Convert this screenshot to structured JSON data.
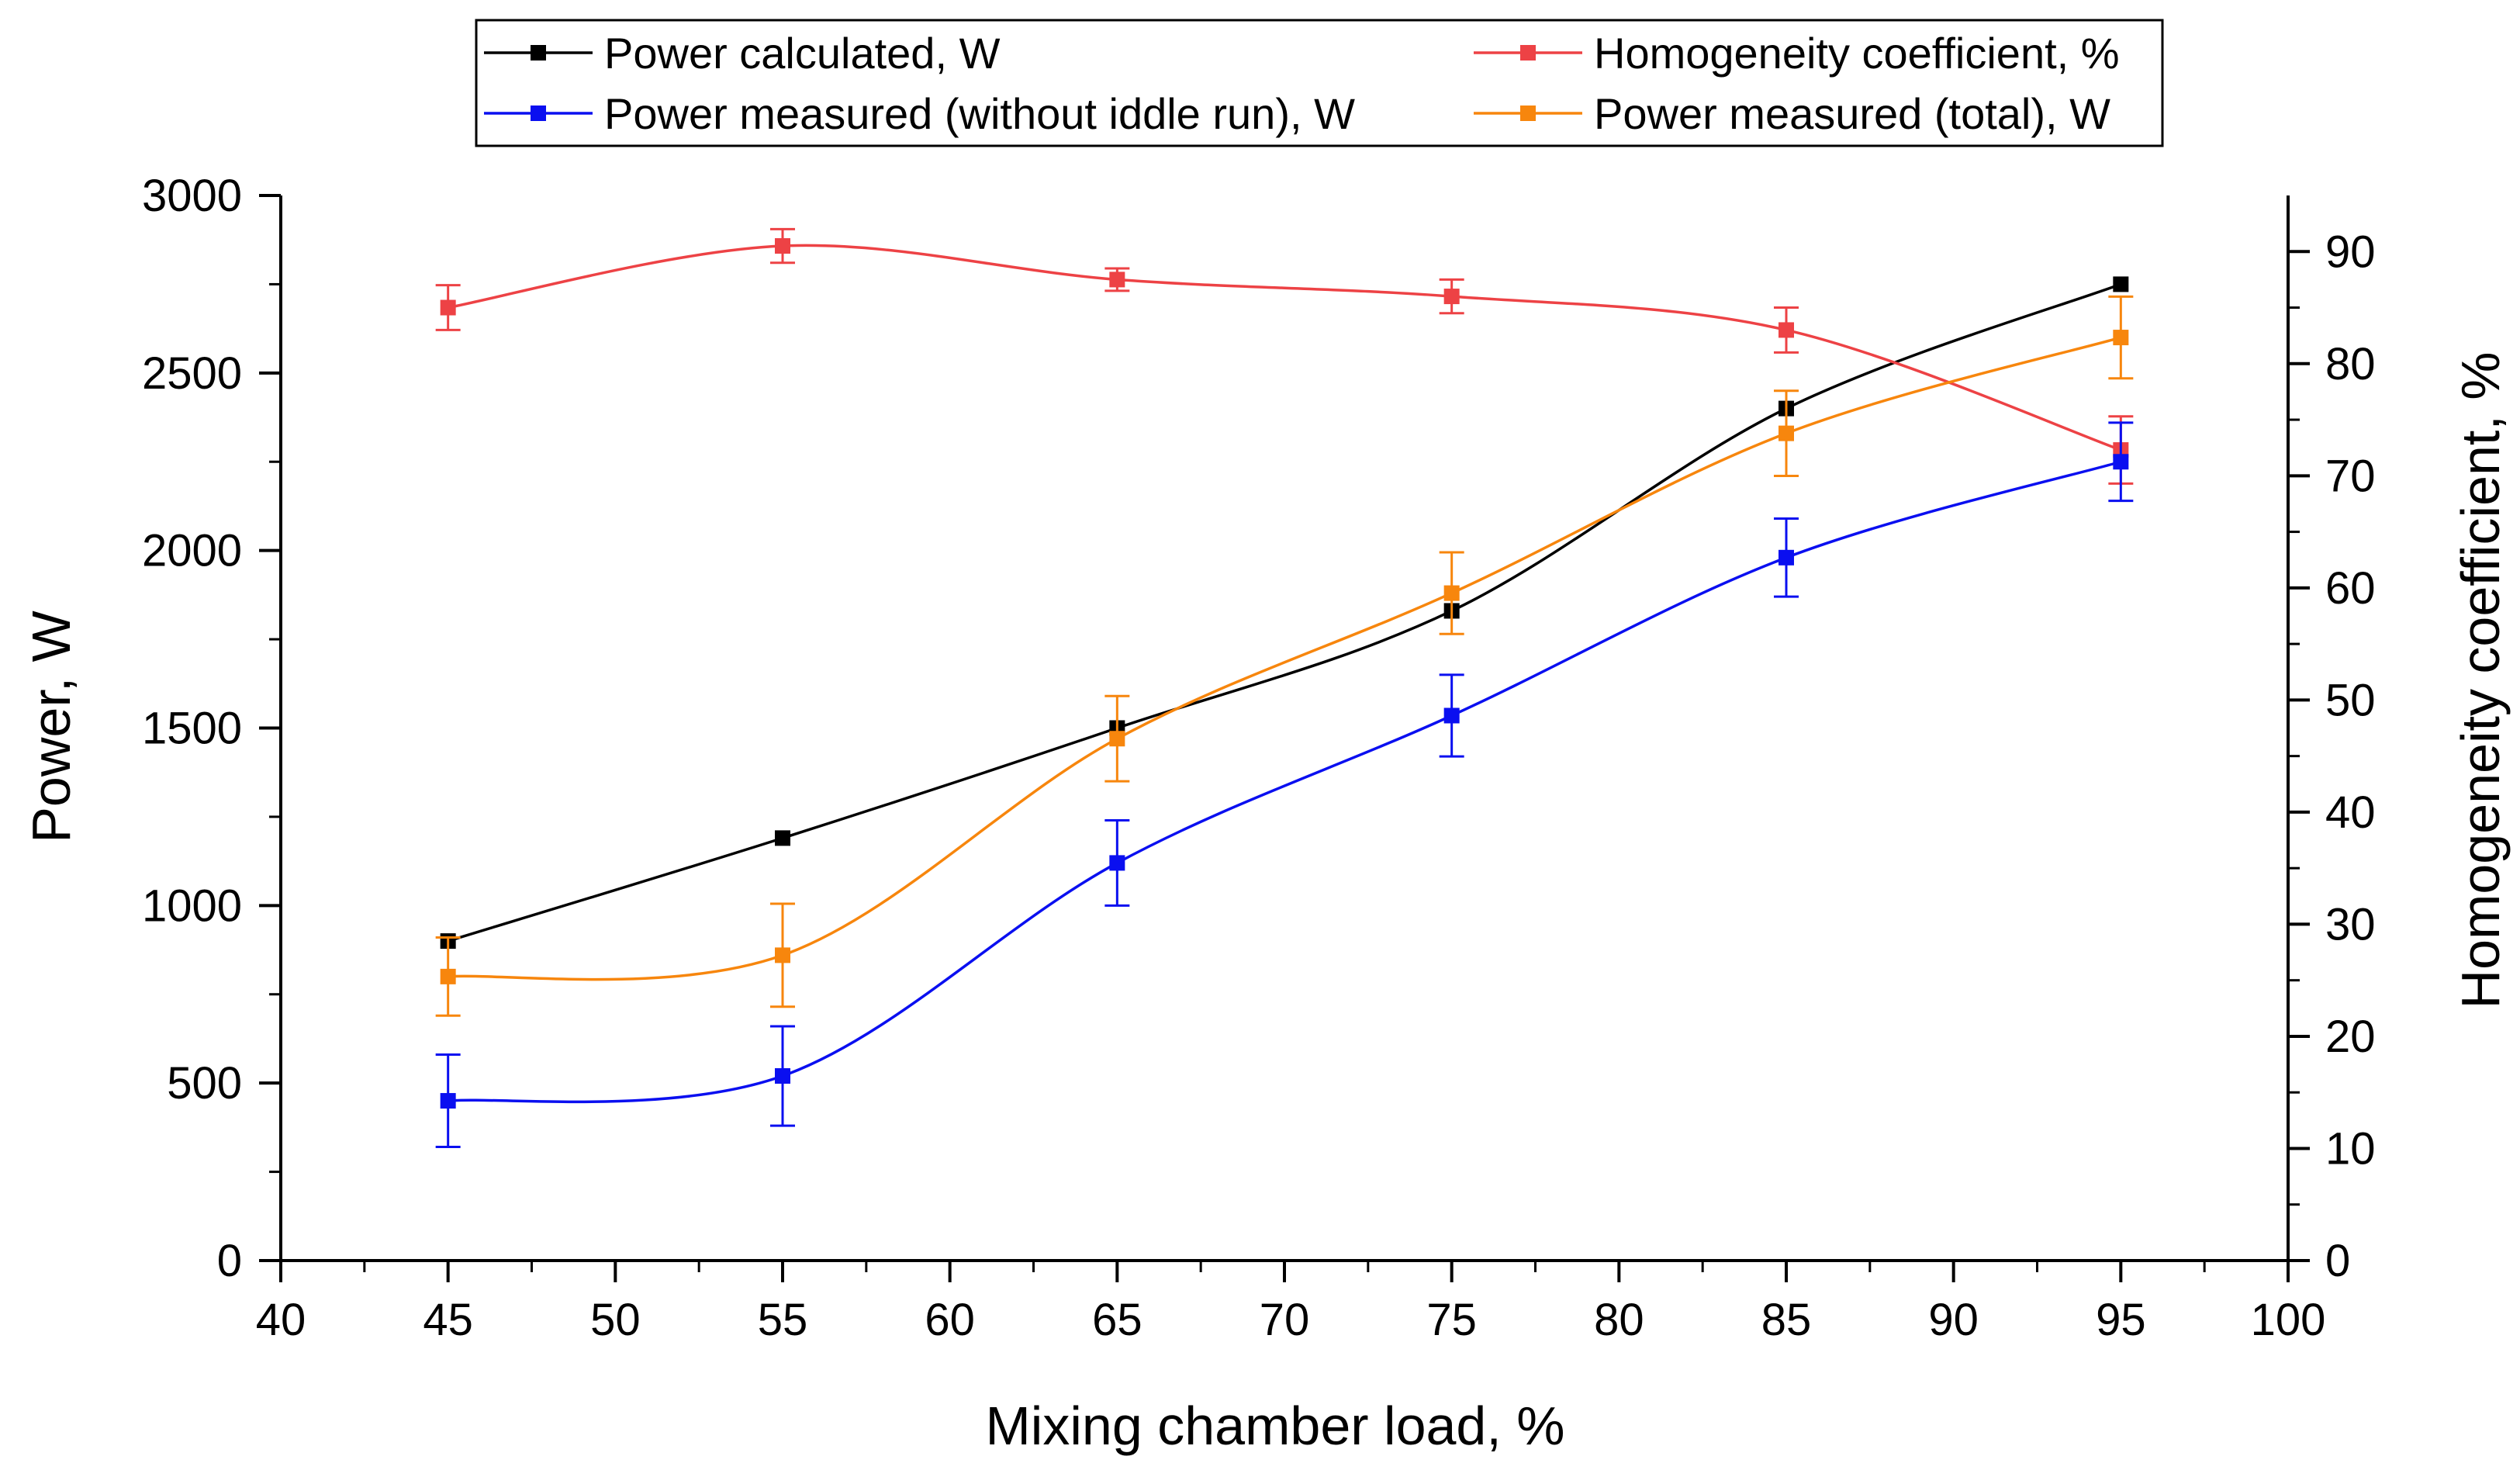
{
  "chart_data": {
    "type": "line",
    "xlabel": "Mixing chamber load, %",
    "ylabel": "Power, W",
    "y2label": "Homogeneity coefficient, %",
    "xlim": [
      40,
      100
    ],
    "ylim": [
      0,
      3000
    ],
    "y2lim": [
      0,
      95
    ],
    "x_ticks": [
      "40",
      "45",
      "50",
      "55",
      "60",
      "65",
      "70",
      "75",
      "80",
      "85",
      "90",
      "95",
      "100"
    ],
    "y_ticks": [
      "0",
      "500",
      "1000",
      "1500",
      "2000",
      "2500",
      "3000"
    ],
    "y2_ticks": [
      "0",
      "10",
      "20",
      "30",
      "40",
      "50",
      "60",
      "70",
      "80",
      "90"
    ],
    "x": [
      45,
      55,
      65,
      75,
      85,
      95
    ],
    "series": [
      {
        "name": "Power calculated, W",
        "axis": "left",
        "color": "#000000",
        "values": [
          900,
          1190,
          1500,
          1830,
          2400,
          2750
        ],
        "errors": []
      },
      {
        "name": "Homogeneity coefficient, %",
        "axis": "right",
        "color": "#ed4245",
        "values": [
          85,
          90.5,
          87.5,
          86,
          83,
          72.3
        ],
        "errors": [
          2,
          1.5,
          1,
          1.5,
          2,
          3
        ]
      },
      {
        "name": "Power measured (without iddle run), W",
        "axis": "left",
        "color": "#0a0ff0",
        "values": [
          450,
          520,
          1120,
          1535,
          1980,
          2250
        ],
        "errors": [
          130,
          140,
          120,
          115,
          110,
          110
        ]
      },
      {
        "name": "Power measured (total), W",
        "axis": "left",
        "color": "#f7860d",
        "values": [
          800,
          860,
          1470,
          1880,
          2330,
          2600
        ],
        "errors": [
          110,
          145,
          120,
          115,
          120,
          115
        ]
      }
    ]
  }
}
